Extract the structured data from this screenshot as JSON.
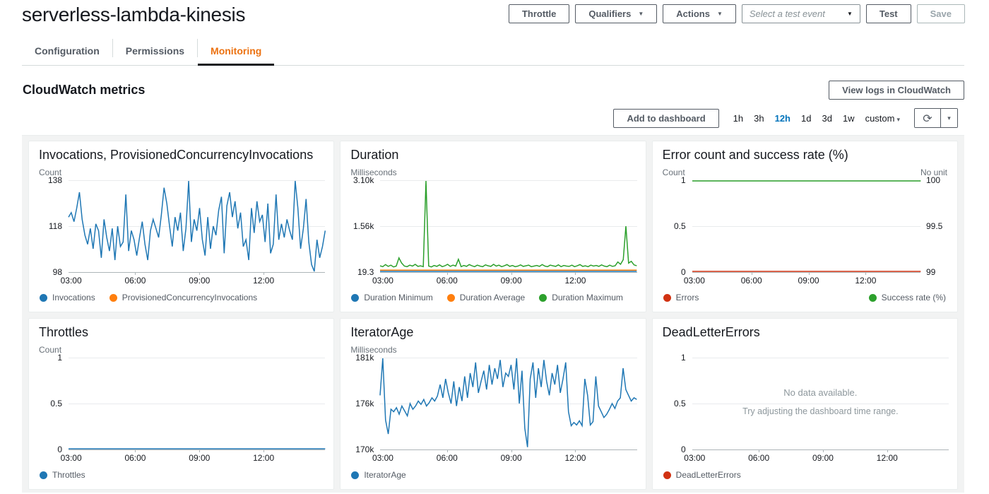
{
  "header": {
    "title": "serverless-lambda-kinesis",
    "throttle_label": "Throttle",
    "qualifiers_label": "Qualifiers",
    "actions_label": "Actions",
    "test_event_placeholder": "Select a test event",
    "test_label": "Test",
    "save_label": "Save"
  },
  "tabs": [
    "Configuration",
    "Permissions",
    "Monitoring"
  ],
  "active_tab": "Monitoring",
  "metrics": {
    "heading": "CloudWatch metrics",
    "view_logs_label": "View logs in CloudWatch",
    "add_to_dashboard_label": "Add to dashboard",
    "time_ranges": [
      "1h",
      "3h",
      "12h",
      "1d",
      "3d",
      "1w"
    ],
    "selected_range": "12h",
    "custom_label": "custom"
  },
  "colors": {
    "tab_active_orange": "#ec7211",
    "selected_range_blue": "#0073bb",
    "series_blue": "#1f77b4",
    "series_orange": "#ff7f0e",
    "series_green": "#2ca02c",
    "series_red": "#d13212"
  },
  "chart_data": [
    {
      "type": "line",
      "title": "Invocations, ProvisionedConcurrencyInvocations",
      "left_unit": "Count",
      "right_unit": "",
      "left_ticks": [
        "138",
        "118",
        "98"
      ],
      "right_ticks": [],
      "x_ticks": [
        "03:00",
        "06:00",
        "09:00",
        "12:00"
      ],
      "ylim": [
        98,
        138
      ],
      "legend": "row",
      "series": [
        {
          "name": "Invocations",
          "color": "#1f77b4",
          "values": [
            122,
            124,
            120,
            126,
            133,
            121,
            114,
            110,
            117,
            108,
            119,
            116,
            104,
            121,
            113,
            107,
            117,
            103,
            118,
            109,
            111,
            132,
            107,
            116,
            112,
            105,
            113,
            120,
            110,
            103,
            116,
            121,
            117,
            113,
            123,
            135,
            128,
            118,
            109,
            122,
            116,
            124,
            107,
            117,
            138,
            111,
            121,
            116,
            126,
            112,
            105,
            122,
            108,
            118,
            114,
            125,
            131,
            106,
            127,
            133,
            122,
            129,
            117,
            124,
            109,
            112,
            103,
            126,
            115,
            129,
            120,
            123,
            111,
            128,
            106,
            110,
            132,
            112,
            119,
            113,
            121,
            116,
            112,
            138,
            126,
            108,
            117,
            130,
            111,
            101,
            98,
            112,
            104,
            109,
            116
          ]
        },
        {
          "name": "ProvisionedConcurrencyInvocations",
          "color": "#ff7f0e",
          "values": []
        }
      ]
    },
    {
      "type": "line",
      "title": "Duration",
      "left_unit": "Milliseconds",
      "right_unit": "",
      "left_ticks": [
        "3.10k",
        "1.56k",
        "19.3"
      ],
      "right_ticks": [],
      "x_ticks": [
        "03:00",
        "06:00",
        "09:00",
        "12:00"
      ],
      "ylim": [
        19.3,
        3100
      ],
      "legend": "row",
      "series": [
        {
          "name": "Duration Minimum",
          "color": "#1f77b4",
          "values": [
            20,
            20
          ]
        },
        {
          "name": "Duration Average",
          "color": "#ff7f0e",
          "values": [
            62,
            62
          ]
        },
        {
          "name": "Duration Maximum",
          "color": "#2ca02c",
          "values": [
            210,
            180,
            250,
            190,
            230,
            170,
            200,
            480,
            300,
            200,
            180,
            230,
            200,
            260,
            190,
            210,
            180,
            3100,
            200,
            170,
            220,
            190,
            240,
            180,
            210,
            260,
            190,
            230,
            200,
            430,
            180,
            220,
            190,
            250,
            210,
            180,
            230,
            200,
            180,
            240,
            210,
            190,
            260,
            200,
            230,
            180,
            210,
            250,
            190,
            220,
            180,
            200,
            240,
            190,
            210,
            230,
            180,
            200,
            220,
            190,
            250,
            200,
            180,
            230,
            210,
            190,
            240,
            180,
            220,
            200,
            190,
            230,
            180,
            210,
            250,
            190,
            210,
            180,
            230,
            200,
            220,
            190,
            240,
            200,
            180,
            230,
            190,
            210,
            340,
            260,
            420,
            1560,
            300,
            360,
            240,
            210
          ]
        }
      ]
    },
    {
      "type": "line",
      "title": "Error count and success rate (%)",
      "left_unit": "Count",
      "right_unit": "No unit",
      "left_ticks": [
        "1",
        "0.5",
        "0"
      ],
      "right_ticks": [
        "100",
        "99.5",
        "99"
      ],
      "x_ticks": [
        "03:00",
        "06:00",
        "09:00",
        "12:00"
      ],
      "ylim": [
        0,
        1
      ],
      "legend": "split",
      "series": [
        {
          "name": "Errors",
          "color": "#d13212",
          "ylim": [
            0,
            1
          ],
          "values": [
            0,
            0
          ]
        },
        {
          "name": "Success rate (%)",
          "color": "#2ca02c",
          "ylim": [
            99,
            100
          ],
          "values": [
            100,
            100
          ]
        }
      ]
    },
    {
      "type": "line",
      "title": "Throttles",
      "left_unit": "Count",
      "right_unit": "",
      "left_ticks": [
        "1",
        "0.5",
        "0"
      ],
      "right_ticks": [],
      "x_ticks": [
        "03:00",
        "06:00",
        "09:00",
        "12:00"
      ],
      "ylim": [
        0,
        1
      ],
      "legend": "row",
      "series": [
        {
          "name": "Throttles",
          "color": "#1f77b4",
          "values": [
            0,
            0
          ]
        }
      ]
    },
    {
      "type": "line",
      "title": "IteratorAge",
      "left_unit": "Milliseconds",
      "right_unit": "",
      "left_ticks": [
        "181k",
        "176k",
        "170k"
      ],
      "right_ticks": [],
      "x_ticks": [
        "03:00",
        "06:00",
        "09:00",
        "12:00"
      ],
      "ylim": [
        170,
        181
      ],
      "legend": "row",
      "series": [
        {
          "name": "IteratorAge",
          "color": "#1f77b4",
          "values": [
            176.5,
            181,
            173.5,
            171.8,
            174.8,
            174.5,
            175.0,
            174.2,
            175.2,
            174.6,
            174.0,
            175.5,
            174.8,
            175.2,
            175.8,
            175.4,
            176.0,
            175.2,
            175.6,
            176.2,
            175.8,
            176.4,
            177.8,
            176.2,
            178.5,
            176.8,
            175.5,
            178.2,
            175.2,
            177.5,
            175.8,
            178.8,
            176.2,
            179.2,
            177.5,
            180.5,
            176.8,
            178.2,
            179.5,
            177.2,
            180.2,
            177.8,
            179.8,
            178.5,
            180.8,
            177.5,
            179.2,
            178.8,
            180.2,
            177.2,
            181.0,
            175.5,
            179.5,
            172.5,
            170.2,
            178.5,
            180.5,
            176.2,
            179.8,
            177.5,
            180.8,
            178.2,
            176.5,
            179.2,
            177.8,
            180.2,
            176.8,
            178.5,
            180.5,
            174.5,
            172.8,
            173.2,
            172.9,
            173.4,
            172.8,
            178.5,
            176.5,
            172.9,
            173.3,
            178.8,
            175.2,
            174.5,
            173.8,
            174.2,
            174.8,
            175.5,
            174.9,
            175.8,
            176.2,
            179.8,
            177.2,
            176.5,
            175.8,
            176.2,
            176.0
          ]
        }
      ]
    },
    {
      "type": "line",
      "title": "DeadLetterErrors",
      "left_unit": "",
      "right_unit": "",
      "left_ticks": [
        "1",
        "0.5",
        "0"
      ],
      "right_ticks": [],
      "x_ticks": [
        "03:00",
        "06:00",
        "09:00",
        "12:00"
      ],
      "ylim": [
        0,
        1
      ],
      "legend": "row",
      "no_data": {
        "line1": "No data available.",
        "line2": "Try adjusting the dashboard time range."
      },
      "series": [
        {
          "name": "DeadLetterErrors",
          "color": "#d13212",
          "values": []
        }
      ]
    }
  ]
}
